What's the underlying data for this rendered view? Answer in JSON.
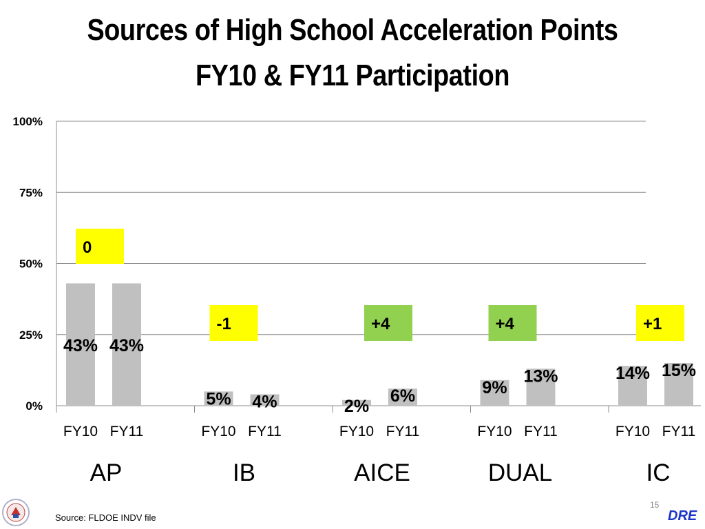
{
  "slide": {
    "title_line1": "Sources of High School Acceleration Points",
    "title_line2": "FY10 & FY11 Participation",
    "source": "Source:  FLDOE INDV file",
    "page_number": "15",
    "brand": "DRE"
  },
  "colors": {
    "bar": "#c0c0c0",
    "grid": "#8c8c8c",
    "change_yellow": "#ffff00",
    "change_green": "#92d050",
    "brand_blue": "#1a35c8"
  },
  "chart_data": {
    "type": "bar",
    "title": "Sources of High School Acceleration Points FY10 & FY11 Participation",
    "ylim": [
      0,
      100
    ],
    "y_ticks": [
      0,
      25,
      50,
      75,
      100
    ],
    "y_tick_labels": [
      "0%",
      "25%",
      "50%",
      "75%",
      "100%"
    ],
    "grid": true,
    "groups": [
      {
        "name": "AP",
        "sub": [
          "FY10",
          "FY11"
        ],
        "values": [
          43,
          43
        ],
        "labels": [
          "43%",
          "43%"
        ],
        "change": "0",
        "change_color": "yellow"
      },
      {
        "name": "IB",
        "sub": [
          "FY10",
          "FY11"
        ],
        "values": [
          5,
          4
        ],
        "labels": [
          "5%",
          "4%"
        ],
        "change": "-1",
        "change_color": "yellow"
      },
      {
        "name": "AICE",
        "sub": [
          "FY10",
          "FY11"
        ],
        "values": [
          2,
          6
        ],
        "labels": [
          "2%",
          "6%"
        ],
        "change": "+4",
        "change_color": "green"
      },
      {
        "name": "DUAL",
        "sub": [
          "FY10",
          "FY11"
        ],
        "values": [
          9,
          13
        ],
        "labels": [
          "9%",
          "13%"
        ],
        "change": "+4",
        "change_color": "green"
      },
      {
        "name": "IC",
        "sub": [
          "FY10",
          "FY11"
        ],
        "values": [
          14,
          15
        ],
        "labels": [
          "14%",
          "15%"
        ],
        "change": "+1",
        "change_color": "yellow"
      }
    ]
  }
}
